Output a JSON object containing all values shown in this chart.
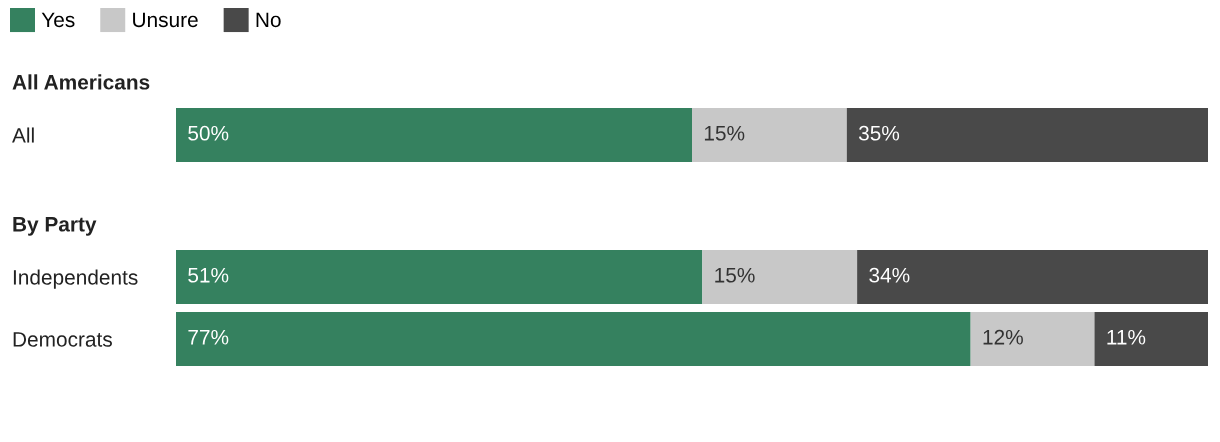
{
  "chart_data": [
    {
      "type": "bar",
      "orientation": "horizontal",
      "stacked": true,
      "title": "All Americans",
      "categories": [
        "All"
      ],
      "xlim": [
        0,
        100
      ],
      "tick_labels": "y",
      "legend": "top left",
      "series": [
        {
          "name": "Yes",
          "color": "#35815f",
          "values": [
            50
          ],
          "value_labels": [
            "50%"
          ]
        },
        {
          "name": "Unsure",
          "color": "#c8c8c8",
          "values": [
            15
          ],
          "value_labels": [
            "15%"
          ]
        },
        {
          "name": "No",
          "color": "#494949",
          "values": [
            35
          ],
          "value_labels": [
            "35%"
          ]
        }
      ]
    },
    {
      "type": "bar",
      "orientation": "horizontal",
      "stacked": true,
      "title": "By Party",
      "categories": [
        "Independents",
        "Democrats"
      ],
      "xlim": [
        0,
        100
      ],
      "tick_labels": "y",
      "legend": false,
      "series": [
        {
          "color": "#35815f",
          "values": [
            51,
            77
          ],
          "value_labels": [
            "51%",
            "77%"
          ]
        },
        {
          "color": "#c8c8c8",
          "values": [
            15,
            12
          ],
          "value_labels": [
            "15%",
            "12%"
          ]
        },
        {
          "color": "#494949",
          "values": [
            34,
            11
          ],
          "value_labels": [
            "34%",
            "11%"
          ]
        }
      ]
    }
  ]
}
